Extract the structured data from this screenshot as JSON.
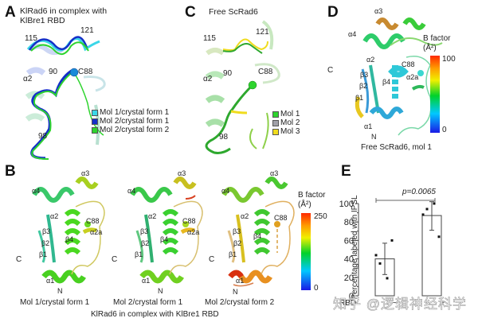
{
  "panels": {
    "A": {
      "letter": "A",
      "title_line1": "KlRad6 in complex with",
      "title_line2": "KlBre1 RBD",
      "labels": {
        "r115": "115",
        "r121": "121",
        "alpha2": "α2",
        "r90": "90",
        "c88": "C88",
        "r98": "98"
      },
      "legend": [
        {
          "label": "Mol 1/crystal form 1",
          "color": "#3ad6e8"
        },
        {
          "label": "Mol 2/crystal form 1",
          "color": "#1530c8"
        },
        {
          "label": "Mol 2/crystal form 2",
          "color": "#2ed42e"
        }
      ]
    },
    "C": {
      "letter": "C",
      "title": "Free ScRad6",
      "labels": {
        "r115": "115",
        "r121": "121",
        "alpha2": "α2",
        "r90": "90",
        "c88": "C88",
        "r98": "98"
      },
      "legend": [
        {
          "label": "Mol 1",
          "color": "#2ed42e"
        },
        {
          "label": "Mol 2",
          "color": "#a0a0a8"
        },
        {
          "label": "Mol 3",
          "color": "#f0dc1e"
        }
      ]
    },
    "D": {
      "letter": "D",
      "caption": "Free ScRad6, mol 1",
      "labels": {
        "alpha4": "α4",
        "alpha3": "α3",
        "alpha2": "α2",
        "c88": "C88",
        "C": "C",
        "beta3": "β3",
        "beta4": "β4",
        "alpha2a": "α2a",
        "beta2": "β2",
        "beta1": "β1",
        "alpha1": "α1",
        "N": "N"
      },
      "colorbar": {
        "title": "B factor",
        "unit": "(Å²)",
        "max": "100",
        "min": "0"
      }
    },
    "B": {
      "letter": "B",
      "structures": [
        {
          "caption": "Mol 1/crystal form 1"
        },
        {
          "caption": "Mol 2/crystal form 1"
        },
        {
          "caption": "Mol 2/crystal form 2"
        }
      ],
      "labels": {
        "alpha4": "α4",
        "alpha3": "α3",
        "alpha2": "α2",
        "c88": "C88",
        "beta3": "β3",
        "beta4": "β4",
        "alpha2a": "α2a",
        "beta2": "β2",
        "beta1": "β1",
        "C": "C",
        "alpha1": "α1",
        "N": "N"
      },
      "group_caption": "KlRad6 in complex with KlBre1 RBD",
      "colorbar": {
        "title": "B factor",
        "unit": "(Å²)",
        "max": "250",
        "min": "0"
      }
    },
    "E": {
      "letter": "E",
      "pvalue": "p=0.0065",
      "ylabel": "Percentage labeled with IPSL",
      "xrow_label": "RBD",
      "x_minus": "−",
      "x_plus": "+"
    }
  },
  "watermark": "知乎 @逻辑神经科学",
  "chart_data": {
    "type": "bar",
    "title": "",
    "xlabel": "RBD",
    "ylabel": "Percentage labeled with IPSL",
    "categories": [
      "−",
      "+"
    ],
    "values": [
      40,
      87
    ],
    "error_low": [
      23,
      71
    ],
    "error_high": [
      57,
      102
    ],
    "points": [
      [
        44,
        35,
        19,
        60
      ],
      [
        88,
        94,
        100,
        64
      ]
    ],
    "ylim": [
      0,
      100
    ],
    "yticks": [
      0,
      20,
      40,
      60,
      80,
      100
    ],
    "annotation": "p=0.0065",
    "grid": false
  }
}
